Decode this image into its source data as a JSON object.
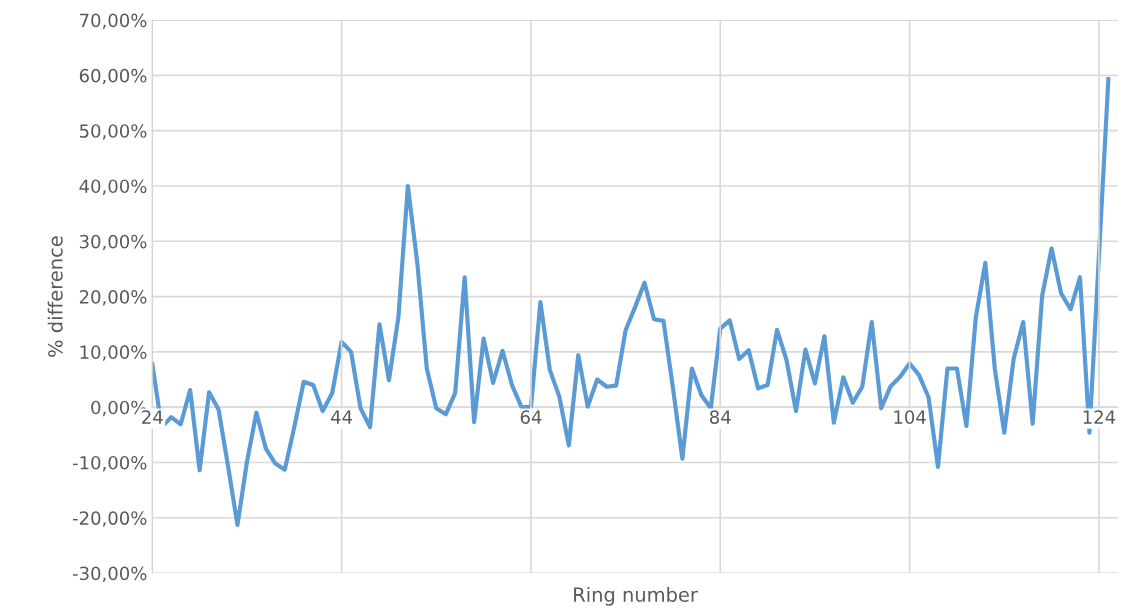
{
  "chart_data": {
    "type": "line",
    "xlabel": "Ring number",
    "ylabel": "% difference",
    "x": [
      24,
      25,
      26,
      27,
      28,
      29,
      30,
      31,
      32,
      33,
      34,
      35,
      36,
      37,
      38,
      39,
      40,
      41,
      42,
      43,
      44,
      45,
      46,
      47,
      48,
      49,
      50,
      51,
      52,
      53,
      54,
      55,
      56,
      57,
      58,
      59,
      60,
      61,
      62,
      63,
      64,
      65,
      66,
      67,
      68,
      69,
      70,
      71,
      72,
      73,
      74,
      75,
      76,
      77,
      78,
      79,
      80,
      81,
      82,
      83,
      84,
      85,
      86,
      87,
      88,
      89,
      90,
      91,
      92,
      93,
      94,
      95,
      96,
      97,
      98,
      99,
      100,
      101,
      102,
      103,
      104,
      105,
      106,
      107,
      108,
      109,
      110,
      111,
      112,
      113,
      114,
      115,
      116,
      117,
      118,
      119,
      120,
      121,
      122,
      123,
      124,
      125
    ],
    "series": [
      {
        "color": "#5b9bd5",
        "values": [
          7.8,
          -3.6,
          -1.8,
          -3.1,
          3.1,
          -11.4,
          2.7,
          -0.4,
          -10.6,
          -21.3,
          -9.9,
          -1.0,
          -7.5,
          -10.2,
          -11.3,
          -3.6,
          4.6,
          4.0,
          -0.7,
          2.5,
          11.8,
          10.0,
          -0.2,
          -3.6,
          15.0,
          4.9,
          16.3,
          40.0,
          26.0,
          7.0,
          -0.2,
          -1.3,
          2.6,
          23.5,
          -2.7,
          12.4,
          4.4,
          10.2,
          4.0,
          0.0,
          0.0,
          19.0,
          6.7,
          1.9,
          -6.9,
          9.4,
          0.1,
          5.0,
          3.7,
          3.9,
          13.9,
          18.1,
          22.5,
          15.9,
          15.6,
          3.5,
          -9.3,
          7.0,
          2.2,
          -0.2,
          14.2,
          15.7,
          8.7,
          10.3,
          3.4,
          4.0,
          14.0,
          8.5,
          -0.7,
          10.4,
          4.3,
          12.8,
          -2.8,
          5.4,
          0.8,
          3.7,
          15.4,
          -0.2,
          3.8,
          5.5,
          7.9,
          5.8,
          1.8,
          -10.8,
          7.0,
          7.0,
          -3.4,
          16.3,
          26.1,
          7.0,
          -4.6,
          8.8,
          15.4,
          -3.0,
          20.1,
          28.7,
          20.6,
          17.7,
          23.5,
          -4.6,
          27.3,
          59.3
        ]
      }
    ],
    "xlim": [
      24,
      126
    ],
    "xticks": [
      24,
      44,
      64,
      84,
      104,
      124
    ],
    "ylim": [
      -30,
      70
    ],
    "yticks": [
      {
        "value": -30,
        "label": "-30,00%"
      },
      {
        "value": -20,
        "label": "-20,00%"
      },
      {
        "value": -10,
        "label": "-10,00%"
      },
      {
        "value": 0,
        "label": "0,00%"
      },
      {
        "value": 10,
        "label": "10,00%"
      },
      {
        "value": 20,
        "label": "20,00%"
      },
      {
        "value": 30,
        "label": "30,00%"
      },
      {
        "value": 40,
        "label": "40,00%"
      },
      {
        "value": 50,
        "label": "50,00%"
      },
      {
        "value": 60,
        "label": "60,00%"
      },
      {
        "value": 70,
        "label": "70,00%"
      }
    ],
    "grid": true,
    "marker": "none",
    "line_style": "solid"
  }
}
